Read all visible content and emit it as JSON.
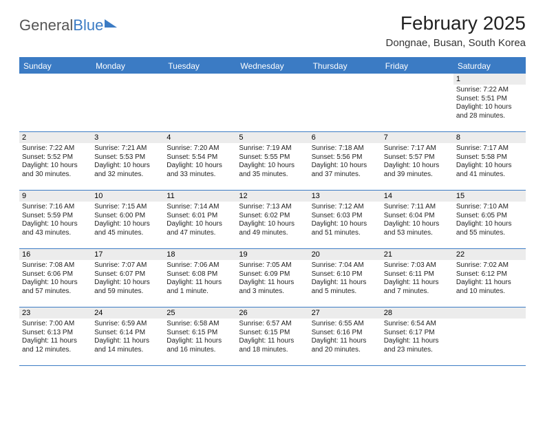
{
  "logo": {
    "text1": "General",
    "text2": "Blue"
  },
  "title": "February 2025",
  "location": "Dongnae, Busan, South Korea",
  "colors": {
    "accent": "#3b7bc4",
    "daynum_bg": "#ececec",
    "bg": "#ffffff"
  },
  "dayHeaders": [
    "Sunday",
    "Monday",
    "Tuesday",
    "Wednesday",
    "Thursday",
    "Friday",
    "Saturday"
  ],
  "weeks": [
    [
      {
        "n": "",
        "empty": true
      },
      {
        "n": "",
        "empty": true
      },
      {
        "n": "",
        "empty": true
      },
      {
        "n": "",
        "empty": true
      },
      {
        "n": "",
        "empty": true
      },
      {
        "n": "",
        "empty": true
      },
      {
        "n": "1",
        "sunrise": "Sunrise: 7:22 AM",
        "sunset": "Sunset: 5:51 PM",
        "daylight": "Daylight: 10 hours and 28 minutes."
      }
    ],
    [
      {
        "n": "2",
        "sunrise": "Sunrise: 7:22 AM",
        "sunset": "Sunset: 5:52 PM",
        "daylight": "Daylight: 10 hours and 30 minutes."
      },
      {
        "n": "3",
        "sunrise": "Sunrise: 7:21 AM",
        "sunset": "Sunset: 5:53 PM",
        "daylight": "Daylight: 10 hours and 32 minutes."
      },
      {
        "n": "4",
        "sunrise": "Sunrise: 7:20 AM",
        "sunset": "Sunset: 5:54 PM",
        "daylight": "Daylight: 10 hours and 33 minutes."
      },
      {
        "n": "5",
        "sunrise": "Sunrise: 7:19 AM",
        "sunset": "Sunset: 5:55 PM",
        "daylight": "Daylight: 10 hours and 35 minutes."
      },
      {
        "n": "6",
        "sunrise": "Sunrise: 7:18 AM",
        "sunset": "Sunset: 5:56 PM",
        "daylight": "Daylight: 10 hours and 37 minutes."
      },
      {
        "n": "7",
        "sunrise": "Sunrise: 7:17 AM",
        "sunset": "Sunset: 5:57 PM",
        "daylight": "Daylight: 10 hours and 39 minutes."
      },
      {
        "n": "8",
        "sunrise": "Sunrise: 7:17 AM",
        "sunset": "Sunset: 5:58 PM",
        "daylight": "Daylight: 10 hours and 41 minutes."
      }
    ],
    [
      {
        "n": "9",
        "sunrise": "Sunrise: 7:16 AM",
        "sunset": "Sunset: 5:59 PM",
        "daylight": "Daylight: 10 hours and 43 minutes."
      },
      {
        "n": "10",
        "sunrise": "Sunrise: 7:15 AM",
        "sunset": "Sunset: 6:00 PM",
        "daylight": "Daylight: 10 hours and 45 minutes."
      },
      {
        "n": "11",
        "sunrise": "Sunrise: 7:14 AM",
        "sunset": "Sunset: 6:01 PM",
        "daylight": "Daylight: 10 hours and 47 minutes."
      },
      {
        "n": "12",
        "sunrise": "Sunrise: 7:13 AM",
        "sunset": "Sunset: 6:02 PM",
        "daylight": "Daylight: 10 hours and 49 minutes."
      },
      {
        "n": "13",
        "sunrise": "Sunrise: 7:12 AM",
        "sunset": "Sunset: 6:03 PM",
        "daylight": "Daylight: 10 hours and 51 minutes."
      },
      {
        "n": "14",
        "sunrise": "Sunrise: 7:11 AM",
        "sunset": "Sunset: 6:04 PM",
        "daylight": "Daylight: 10 hours and 53 minutes."
      },
      {
        "n": "15",
        "sunrise": "Sunrise: 7:10 AM",
        "sunset": "Sunset: 6:05 PM",
        "daylight": "Daylight: 10 hours and 55 minutes."
      }
    ],
    [
      {
        "n": "16",
        "sunrise": "Sunrise: 7:08 AM",
        "sunset": "Sunset: 6:06 PM",
        "daylight": "Daylight: 10 hours and 57 minutes."
      },
      {
        "n": "17",
        "sunrise": "Sunrise: 7:07 AM",
        "sunset": "Sunset: 6:07 PM",
        "daylight": "Daylight: 10 hours and 59 minutes."
      },
      {
        "n": "18",
        "sunrise": "Sunrise: 7:06 AM",
        "sunset": "Sunset: 6:08 PM",
        "daylight": "Daylight: 11 hours and 1 minute."
      },
      {
        "n": "19",
        "sunrise": "Sunrise: 7:05 AM",
        "sunset": "Sunset: 6:09 PM",
        "daylight": "Daylight: 11 hours and 3 minutes."
      },
      {
        "n": "20",
        "sunrise": "Sunrise: 7:04 AM",
        "sunset": "Sunset: 6:10 PM",
        "daylight": "Daylight: 11 hours and 5 minutes."
      },
      {
        "n": "21",
        "sunrise": "Sunrise: 7:03 AM",
        "sunset": "Sunset: 6:11 PM",
        "daylight": "Daylight: 11 hours and 7 minutes."
      },
      {
        "n": "22",
        "sunrise": "Sunrise: 7:02 AM",
        "sunset": "Sunset: 6:12 PM",
        "daylight": "Daylight: 11 hours and 10 minutes."
      }
    ],
    [
      {
        "n": "23",
        "sunrise": "Sunrise: 7:00 AM",
        "sunset": "Sunset: 6:13 PM",
        "daylight": "Daylight: 11 hours and 12 minutes."
      },
      {
        "n": "24",
        "sunrise": "Sunrise: 6:59 AM",
        "sunset": "Sunset: 6:14 PM",
        "daylight": "Daylight: 11 hours and 14 minutes."
      },
      {
        "n": "25",
        "sunrise": "Sunrise: 6:58 AM",
        "sunset": "Sunset: 6:15 PM",
        "daylight": "Daylight: 11 hours and 16 minutes."
      },
      {
        "n": "26",
        "sunrise": "Sunrise: 6:57 AM",
        "sunset": "Sunset: 6:15 PM",
        "daylight": "Daylight: 11 hours and 18 minutes."
      },
      {
        "n": "27",
        "sunrise": "Sunrise: 6:55 AM",
        "sunset": "Sunset: 6:16 PM",
        "daylight": "Daylight: 11 hours and 20 minutes."
      },
      {
        "n": "28",
        "sunrise": "Sunrise: 6:54 AM",
        "sunset": "Sunset: 6:17 PM",
        "daylight": "Daylight: 11 hours and 23 minutes."
      },
      {
        "n": "",
        "empty": true
      }
    ]
  ]
}
